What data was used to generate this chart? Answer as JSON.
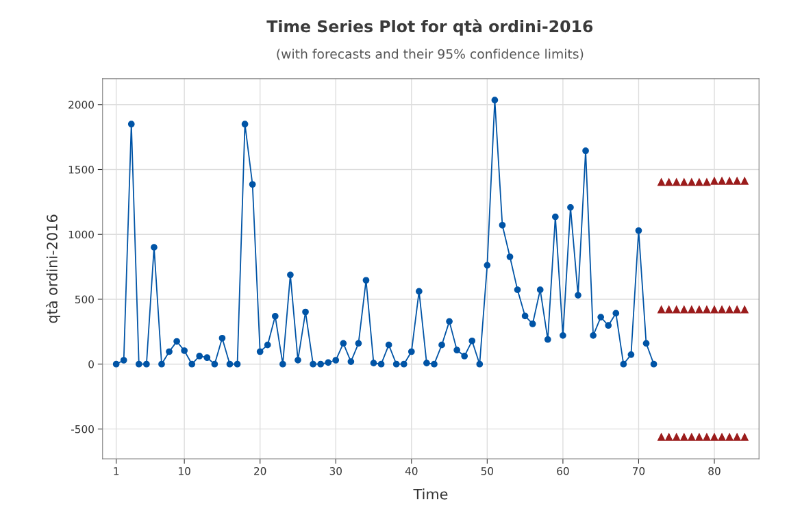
{
  "chart_data": {
    "type": "line",
    "title": "Time Series Plot for qtà ordini-2016",
    "subtitle": "(with forecasts and their 95% confidence limits)",
    "xlabel": "Time",
    "ylabel": "qtà ordini-2016",
    "xlim": [
      -0.8,
      85.9
    ],
    "xticks": [
      1,
      10,
      20,
      30,
      40,
      50,
      60,
      70,
      80
    ],
    "ylim": [
      -730,
      2200
    ],
    "yticks": [
      -500,
      0,
      500,
      1000,
      1500,
      2000
    ],
    "grid": true,
    "series": [
      {
        "color": "#0054a6",
        "marker": "circle",
        "x": [
          1,
          2,
          3,
          4,
          5,
          6,
          7,
          8,
          9,
          10,
          11,
          12,
          13,
          14,
          15,
          16,
          17,
          18,
          19,
          20,
          21,
          22,
          23,
          24,
          25,
          26,
          27,
          28,
          29,
          30,
          31,
          32,
          33,
          34,
          35,
          36,
          37,
          38,
          39,
          40,
          41,
          42,
          43,
          44,
          45,
          46,
          47,
          48,
          49,
          50,
          51,
          52,
          53,
          54,
          55,
          56,
          57,
          58,
          59,
          60,
          61,
          62,
          63,
          64,
          65,
          66,
          67,
          68,
          69,
          70,
          71,
          72
        ],
        "values": [
          0,
          30,
          1850,
          0,
          0,
          900,
          0,
          96,
          175,
          104,
          0,
          62,
          50,
          0,
          200,
          0,
          0,
          1850,
          1385,
          96,
          148,
          369,
          0,
          688,
          31,
          402,
          0,
          0,
          12,
          30,
          160,
          19,
          160,
          646,
          8,
          0,
          148,
          0,
          0,
          96,
          561,
          8,
          0,
          148,
          329,
          108,
          62,
          179,
          0,
          762,
          2035,
          1071,
          827,
          573,
          371,
          310,
          573,
          190,
          1135,
          221,
          1208,
          531,
          1644,
          221,
          362,
          298,
          392,
          0,
          73,
          1029,
          160,
          0
        ]
      },
      {
        "type": "scatter",
        "color": "#9b1c1c",
        "marker": "triangle",
        "x": [
          73,
          74,
          75,
          76,
          77,
          78,
          79,
          80,
          81,
          82,
          83,
          84
        ],
        "values": [
          1403,
          1403,
          1403,
          1403,
          1403,
          1403,
          1403,
          1412,
          1412,
          1412,
          1412,
          1412
        ]
      },
      {
        "type": "scatter",
        "color": "#9b1c1c",
        "marker": "triangle",
        "x": [
          73,
          74,
          75,
          76,
          77,
          78,
          79,
          80,
          81,
          82,
          83,
          84
        ],
        "values": [
          421,
          421,
          421,
          421,
          421,
          421,
          421,
          421,
          421,
          421,
          421,
          421
        ]
      },
      {
        "type": "scatter",
        "color": "#9b1c1c",
        "marker": "triangle",
        "x": [
          73,
          74,
          75,
          76,
          77,
          78,
          79,
          80,
          81,
          82,
          83,
          84
        ],
        "values": [
          -562,
          -562,
          -562,
          -562,
          -562,
          -562,
          -562,
          -562,
          -562,
          -562,
          -562,
          -562
        ]
      }
    ]
  }
}
